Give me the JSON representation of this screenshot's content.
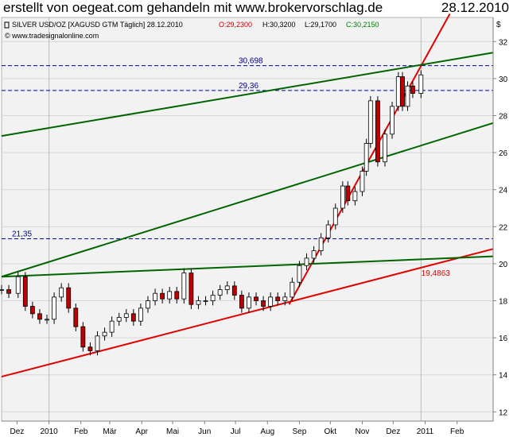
{
  "header": {
    "title": "erstellt von oegeat.com gehandeln mit www.brokervorschlag.de",
    "date": "28.12.2010"
  },
  "colors": {
    "plot_bg": "#f2f2f2",
    "support_line": "#e00000",
    "channel_line": "#006400",
    "level_line": "#00008b",
    "candle_up": "#ffffff",
    "candle_down": "#c00000",
    "candle_outline": "#000000",
    "ohlc_open": "#cc0000",
    "ohlc_high": "#000000",
    "ohlc_close": "#008000"
  },
  "chart_data": {
    "type": "candlestick",
    "instrument": "SILVER USD/OZ [XAGUSD GTM  Täglich] 28.12.2010",
    "ohlc_readout": {
      "open": "O:29,2300",
      "high": "H:30,3200",
      "low": "L:29,1700",
      "close": "C:30,2150"
    },
    "source_text": "© www.tradesignalonline.com",
    "currency_label": "$",
    "y_range": [
      11.5,
      33.3
    ],
    "y_ticks": [
      12,
      14,
      16,
      18,
      20,
      22,
      24,
      26,
      28,
      30,
      32
    ],
    "y_tick_labels": [
      "12",
      "14",
      "16",
      "18",
      "20",
      "22",
      "24",
      "26",
      "28",
      "30",
      "32"
    ],
    "x_range": [
      "2009-11-16",
      "2011-03-08"
    ],
    "x_ticks": [
      {
        "date": "2009-12-01",
        "label": "Dez"
      },
      {
        "date": "2010-01-01",
        "label": "2010"
      },
      {
        "date": "2010-02-01",
        "label": "Feb"
      },
      {
        "date": "2010-03-01",
        "label": "Mär"
      },
      {
        "date": "2010-04-01",
        "label": "Apr"
      },
      {
        "date": "2010-05-01",
        "label": "Mai"
      },
      {
        "date": "2010-06-01",
        "label": "Jun"
      },
      {
        "date": "2010-07-01",
        "label": "Jul"
      },
      {
        "date": "2010-08-01",
        "label": "Aug"
      },
      {
        "date": "2010-09-01",
        "label": "Sep"
      },
      {
        "date": "2010-10-01",
        "label": "Okt"
      },
      {
        "date": "2010-11-01",
        "label": "Nov"
      },
      {
        "date": "2010-12-01",
        "label": "Dez"
      },
      {
        "date": "2011-01-01",
        "label": "2011"
      },
      {
        "date": "2011-02-01",
        "label": "Feb"
      }
    ],
    "vertical_gridlines": [
      "2010-01-01",
      "2010-12-28"
    ],
    "series": [
      {
        "name": "SILVER USD/OZ",
        "style": "candlestick",
        "data": [
          {
            "date": "2009-11-16",
            "close": 18.6
          },
          {
            "date": "2009-11-23",
            "close": 18.4
          },
          {
            "date": "2009-12-02",
            "close": 19.3
          },
          {
            "date": "2009-12-09",
            "close": 17.7
          },
          {
            "date": "2009-12-16",
            "close": 17.3
          },
          {
            "date": "2009-12-23",
            "close": 17.0
          },
          {
            "date": "2009-12-30",
            "close": 17.0
          },
          {
            "date": "2010-01-06",
            "close": 18.2
          },
          {
            "date": "2010-01-13",
            "close": 18.7
          },
          {
            "date": "2010-01-20",
            "close": 17.6
          },
          {
            "date": "2010-01-27",
            "close": 16.6
          },
          {
            "date": "2010-02-03",
            "close": 15.5
          },
          {
            "date": "2010-02-10",
            "close": 15.3
          },
          {
            "date": "2010-02-17",
            "close": 16.1
          },
          {
            "date": "2010-02-24",
            "close": 16.3
          },
          {
            "date": "2010-03-03",
            "close": 16.9
          },
          {
            "date": "2010-03-10",
            "close": 17.1
          },
          {
            "date": "2010-03-17",
            "close": 17.3
          },
          {
            "date": "2010-03-24",
            "close": 16.9
          },
          {
            "date": "2010-03-31",
            "close": 17.6
          },
          {
            "date": "2010-04-07",
            "close": 18.0
          },
          {
            "date": "2010-04-14",
            "close": 18.4
          },
          {
            "date": "2010-04-21",
            "close": 18.1
          },
          {
            "date": "2010-04-28",
            "close": 18.5
          },
          {
            "date": "2010-05-05",
            "close": 18.1
          },
          {
            "date": "2010-05-12",
            "close": 19.5
          },
          {
            "date": "2010-05-19",
            "close": 17.8
          },
          {
            "date": "2010-05-26",
            "close": 18.0
          },
          {
            "date": "2010-06-02",
            "close": 18.0
          },
          {
            "date": "2010-06-09",
            "close": 18.3
          },
          {
            "date": "2010-06-16",
            "close": 18.6
          },
          {
            "date": "2010-06-23",
            "close": 18.8
          },
          {
            "date": "2010-06-30",
            "close": 18.3
          },
          {
            "date": "2010-07-07",
            "close": 17.6
          },
          {
            "date": "2010-07-14",
            "close": 18.2
          },
          {
            "date": "2010-07-21",
            "close": 18.0
          },
          {
            "date": "2010-07-28",
            "close": 17.7
          },
          {
            "date": "2010-08-04",
            "close": 18.2
          },
          {
            "date": "2010-08-11",
            "close": 18.0
          },
          {
            "date": "2010-08-18",
            "close": 18.2
          },
          {
            "date": "2010-08-25",
            "close": 19.0
          },
          {
            "date": "2010-09-01",
            "close": 19.9
          },
          {
            "date": "2010-09-08",
            "close": 20.3
          },
          {
            "date": "2010-09-15",
            "close": 20.7
          },
          {
            "date": "2010-09-22",
            "close": 21.4
          },
          {
            "date": "2010-09-29",
            "close": 22.1
          },
          {
            "date": "2010-10-06",
            "close": 23.0
          },
          {
            "date": "2010-10-13",
            "close": 24.2
          },
          {
            "date": "2010-10-18",
            "close": 23.4
          },
          {
            "date": "2010-10-25",
            "close": 23.9
          },
          {
            "date": "2010-11-01",
            "close": 25.0
          },
          {
            "date": "2010-11-05",
            "close": 26.5
          },
          {
            "date": "2010-11-09",
            "close": 28.8
          },
          {
            "date": "2010-11-16",
            "close": 25.5
          },
          {
            "date": "2010-11-23",
            "close": 27.0
          },
          {
            "date": "2010-11-30",
            "close": 28.5
          },
          {
            "date": "2010-12-06",
            "close": 30.1
          },
          {
            "date": "2010-12-10",
            "close": 28.5
          },
          {
            "date": "2010-12-15",
            "close": 29.6
          },
          {
            "date": "2010-12-20",
            "close": 29.2
          },
          {
            "date": "2010-12-28",
            "close": 30.2
          }
        ]
      }
    ],
    "horizontal_levels": [
      {
        "value": 30.698,
        "label": "30,698"
      },
      {
        "value": 29.36,
        "label": "29,36"
      },
      {
        "value": 21.35,
        "label": "21,35"
      }
    ],
    "trendlines": [
      {
        "color": "red",
        "points": [
          [
            "2009-11-16",
            13.9
          ],
          [
            "2011-03-08",
            20.8
          ]
        ]
      },
      {
        "color": "red",
        "points": [
          [
            "2010-08-22",
            17.8
          ],
          [
            "2011-01-25",
            33.5
          ]
        ]
      },
      {
        "color": "green",
        "points": [
          [
            "2009-11-16",
            26.9
          ],
          [
            "2011-03-08",
            31.4
          ]
        ]
      },
      {
        "color": "green",
        "points": [
          [
            "2009-11-16",
            19.3
          ],
          [
            "2011-03-08",
            27.6
          ]
        ]
      },
      {
        "color": "green",
        "points": [
          [
            "2009-11-16",
            19.3
          ],
          [
            "2011-03-08",
            20.4
          ]
        ]
      }
    ],
    "annotations": [
      {
        "label": "19,4863",
        "date": "2011-01-05",
        "value": 19.4863
      }
    ],
    "grid": true
  }
}
